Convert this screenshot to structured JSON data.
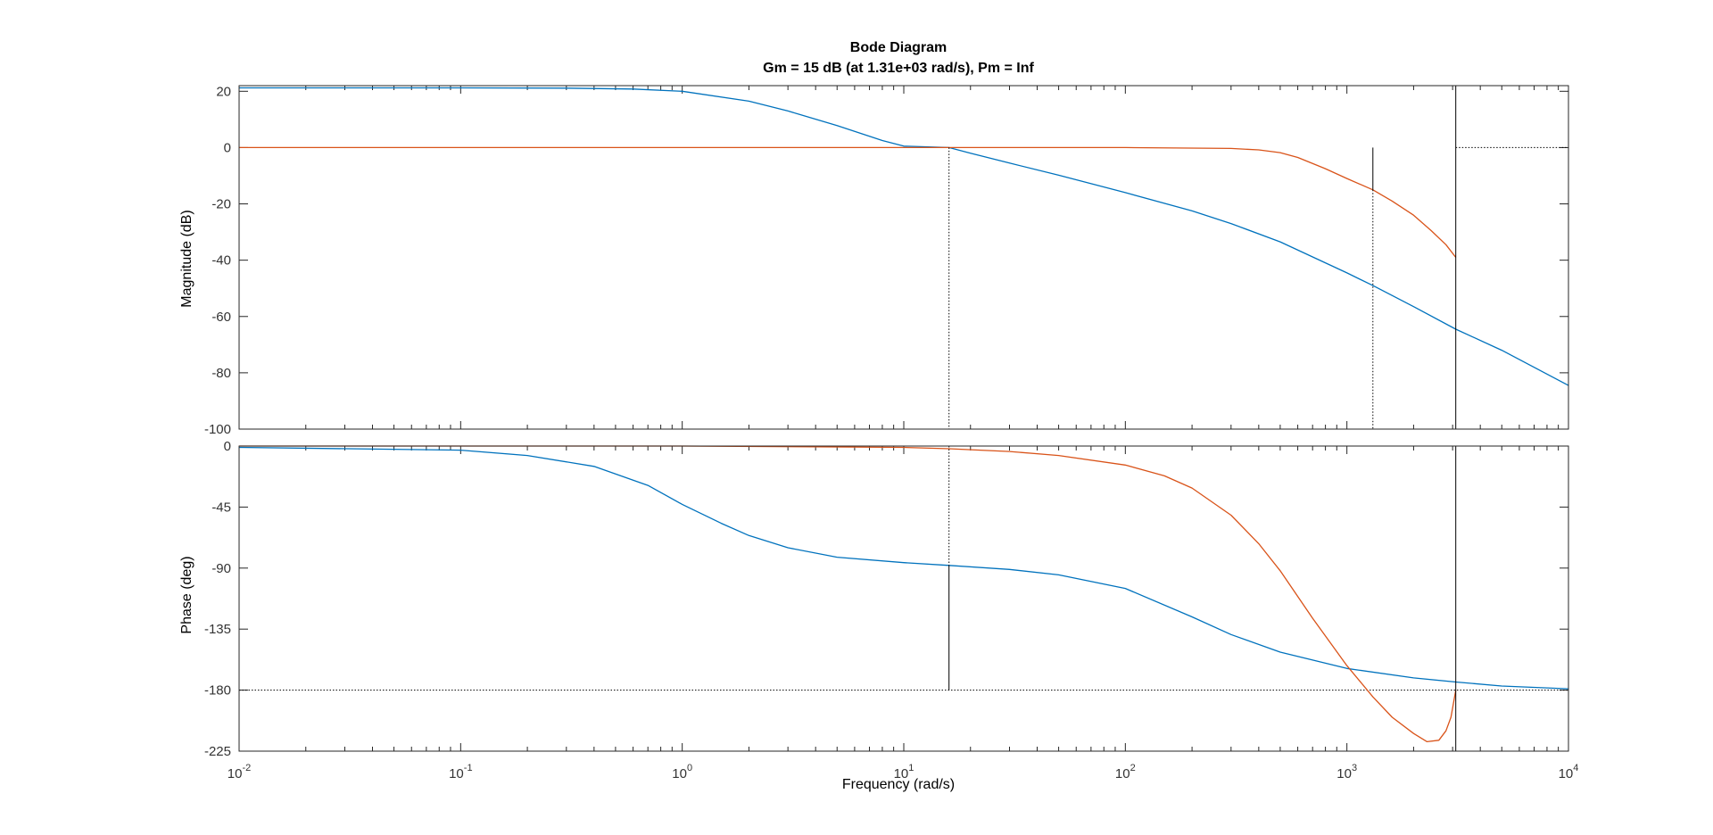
{
  "chart_data": {
    "type": "line",
    "title": "Bode Diagram",
    "subtitle": "Gm = 15 dB (at 1.31e+03 rad/s),  Pm = Inf",
    "xlabel": "Frequency  (rad/s)",
    "xscale": "log",
    "xlim": [
      0.01,
      10000
    ],
    "grid": false,
    "colors": {
      "series_1": "#0072BD",
      "series_2": "#D95319",
      "marker": "#000000"
    },
    "x_ticks": [
      {
        "base": "10",
        "exp": "-2",
        "value": 0.01
      },
      {
        "base": "10",
        "exp": "-1",
        "value": 0.1
      },
      {
        "base": "10",
        "exp": "0",
        "value": 1
      },
      {
        "base": "10",
        "exp": "1",
        "value": 10
      },
      {
        "base": "10",
        "exp": "2",
        "value": 100
      },
      {
        "base": "10",
        "exp": "3",
        "value": 1000
      },
      {
        "base": "10",
        "exp": "4",
        "value": 10000
      }
    ],
    "magnitude": {
      "ylabel": "Magnitude (dB)",
      "ylim": [
        -100,
        22
      ],
      "yticks": [
        20,
        0,
        -20,
        -40,
        -60,
        -80,
        -100
      ],
      "series": [
        {
          "x": [
            0.01,
            0.1,
            0.3,
            0.6,
            1,
            2,
            3,
            5,
            8,
            10,
            16,
            20,
            30,
            50,
            100,
            200,
            300,
            500,
            1000,
            1310,
            2000,
            3100,
            5000,
            10000
          ],
          "y": [
            21.2,
            21.2,
            21.1,
            20.8,
            20,
            16.5,
            13,
            7.8,
            2.5,
            0.5,
            0,
            -2,
            -5.5,
            -9.8,
            -16,
            -22.5,
            -27,
            -33.5,
            -44.5,
            -49,
            -56.5,
            -64.5,
            -72,
            -84.5
          ]
        },
        {
          "x": [
            0.01,
            1,
            10,
            100,
            300,
            400,
            500,
            600,
            800,
            1000,
            1310,
            1600,
            2000,
            2400,
            2800,
            3100
          ],
          "y": [
            0,
            0,
            0,
            0,
            -0.3,
            -0.8,
            -1.8,
            -3.5,
            -7.5,
            -11,
            -15,
            -19,
            -24,
            -29.5,
            -34.5,
            -39
          ]
        }
      ],
      "markers": [
        {
          "x": 16,
          "y": 0,
          "y_to": -100,
          "style": "dotted"
        },
        {
          "x": 1310,
          "y": 0,
          "y_to": -15,
          "style": "solid"
        },
        {
          "x": 1310,
          "y": -15,
          "y_to": -100,
          "style": "dotted"
        },
        {
          "x": 3100,
          "y": 22,
          "y_to": -100,
          "style": "solid"
        }
      ],
      "ref_lines": [
        {
          "y": 0,
          "x_from": 3100,
          "x_to": 10000,
          "style": "dotted"
        }
      ]
    },
    "phase": {
      "ylabel": "Phase (deg)",
      "ylim": [
        -225,
        0
      ],
      "yticks": [
        0,
        -45,
        -90,
        -135,
        -180,
        -225
      ],
      "series": [
        {
          "x": [
            0.01,
            0.1,
            0.2,
            0.4,
            0.7,
            1,
            1.5,
            2,
            3,
            5,
            10,
            16,
            30,
            50,
            100,
            200,
            300,
            500,
            1000,
            2000,
            3100,
            5000,
            10000
          ],
          "y": [
            -1,
            -3,
            -7,
            -15,
            -29,
            -43,
            -57,
            -66,
            -75,
            -82,
            -86,
            -88,
            -91,
            -95,
            -105,
            -126,
            -139,
            -152,
            -164,
            -171,
            -174,
            -177,
            -179
          ]
        },
        {
          "x": [
            0.01,
            1,
            10,
            16,
            30,
            50,
            100,
            150,
            200,
            300,
            400,
            500,
            700,
            1000,
            1310,
            1600,
            2000,
            2300,
            2600,
            2800,
            2950,
            3100
          ],
          "y": [
            0,
            0,
            -1,
            -2,
            -4,
            -7,
            -14,
            -22,
            -31,
            -51,
            -72,
            -92,
            -127,
            -162,
            -185,
            -200,
            -212,
            -218,
            -217,
            -210,
            -200,
            -180
          ]
        }
      ],
      "markers": [
        {
          "x": 16,
          "y": 0,
          "y_to": -88,
          "style": "dotted"
        },
        {
          "x": 16,
          "y": -88,
          "y_to": -180,
          "style": "solid"
        },
        {
          "x": 3100,
          "y": 0,
          "y_to": -225,
          "style": "solid"
        }
      ],
      "ref_lines": [
        {
          "y": -180,
          "x_from": 0.01,
          "x_to": 10000,
          "style": "dotted"
        }
      ]
    }
  }
}
